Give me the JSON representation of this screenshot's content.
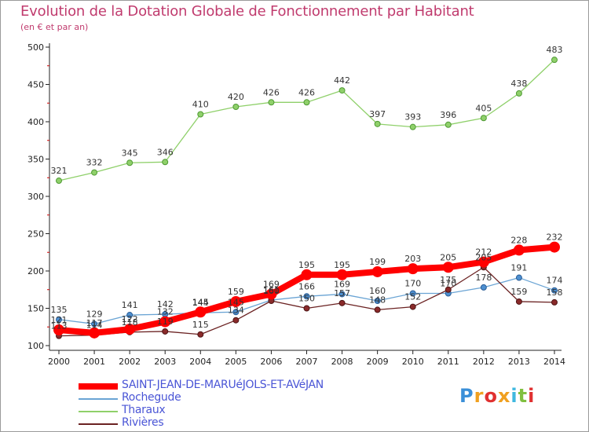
{
  "title": "Evolution de la Dotation Globale de Fonctionnement par Habitant",
  "subtitle": "(en € et par an)",
  "logo": {
    "text": "Proxiti",
    "colors": [
      "#3a8fd8",
      "#f0a020",
      "#e03030",
      "#f0a020",
      "#3fb8e0",
      "#80c040",
      "#e03030"
    ]
  },
  "chart_data": {
    "type": "line",
    "title": "Evolution de la Dotation Globale de Fonctionnement par Habitant",
    "ylabel": "(en € et par an)",
    "xlabel": "",
    "ylim": [
      100,
      500
    ],
    "yticks": [
      100,
      150,
      200,
      250,
      300,
      350,
      400,
      450,
      500
    ],
    "grid": false,
    "legend_position": "bottom-left",
    "categories": [
      "2000",
      "2001",
      "2002",
      "2003",
      "2004",
      "2005",
      "2006",
      "2007",
      "2008",
      "2009",
      "2010",
      "2011",
      "2012",
      "2013",
      "2014"
    ],
    "series": [
      {
        "name": "SAINT-JEAN-DE-MARUéJOLS-ET-AVéJAN",
        "color": "#ff0000",
        "values": [
          121,
          117,
          122,
          132,
          145,
          159,
          169,
          195,
          195,
          199,
          203,
          205,
          212,
          228,
          232
        ]
      },
      {
        "name": "Rochegude",
        "color": "#6aa4d4",
        "values": [
          135,
          129,
          141,
          142,
          144,
          145,
          161,
          166,
          169,
          160,
          170,
          170,
          178,
          191,
          174
        ]
      },
      {
        "name": "Tharaux",
        "color": "#8fd06a",
        "values": [
          321,
          332,
          345,
          346,
          410,
          420,
          426,
          426,
          442,
          397,
          393,
          396,
          405,
          438,
          483
        ]
      },
      {
        "name": "Rivières",
        "color": "#6b2222",
        "values": [
          113,
          114,
          118,
          119,
          115,
          134,
          160,
          150,
          157,
          148,
          152,
          175,
          205,
          159,
          158
        ]
      }
    ]
  }
}
